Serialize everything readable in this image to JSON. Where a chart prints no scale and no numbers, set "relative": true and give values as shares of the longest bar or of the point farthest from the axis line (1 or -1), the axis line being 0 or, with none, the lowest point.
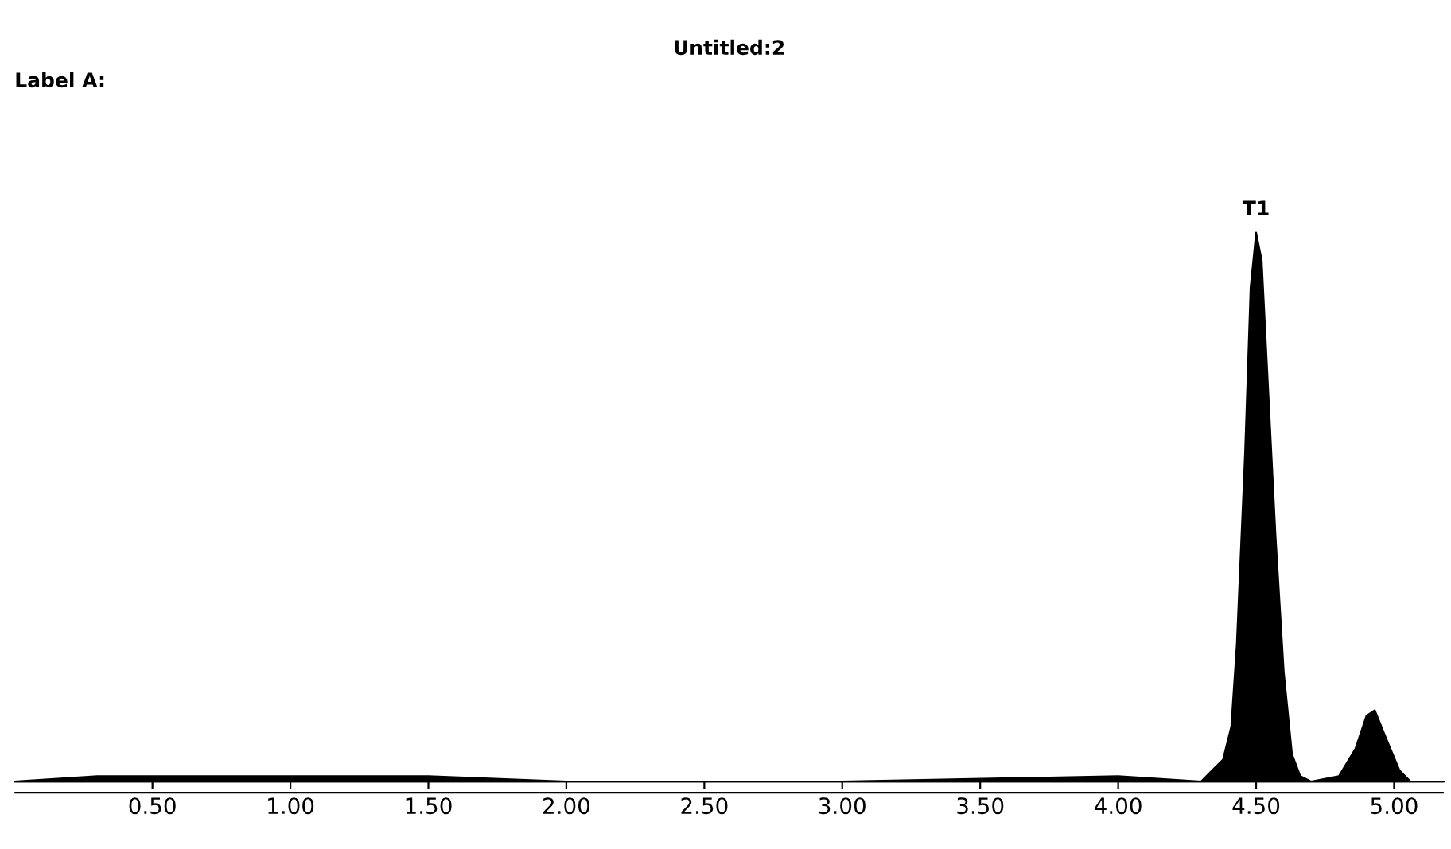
{
  "chart_data": {
    "type": "area",
    "title": "Untitled:2",
    "relative": true,
    "annotations": [
      "Label A:",
      {
        "text": "T1",
        "x": 4.5,
        "y": 1.0
      }
    ],
    "x": [
      0.0,
      0.3,
      0.6,
      1.0,
      1.5,
      2.0,
      3.0,
      4.0,
      4.3,
      4.34,
      4.38,
      4.41,
      4.43,
      4.46,
      4.48,
      4.5,
      4.52,
      4.54,
      4.57,
      4.6,
      4.63,
      4.66,
      4.7,
      4.8,
      4.86,
      4.9,
      4.93,
      4.97,
      5.02,
      5.06,
      5.18
    ],
    "series": [
      {
        "color": "#000000",
        "values": [
          0,
          0.01,
          0.01,
          0.01,
          0.01,
          0,
          0,
          0.01,
          0,
          0.02,
          0.04,
          0.1,
          0.25,
          0.6,
          0.9,
          1.0,
          0.95,
          0.75,
          0.45,
          0.2,
          0.05,
          0.01,
          0,
          0.01,
          0.06,
          0.12,
          0.13,
          0.08,
          0.02,
          0,
          0
        ]
      }
    ],
    "xlim": [
      0.0,
      5.18
    ],
    "xticks": [
      {
        "value": 0.5,
        "label": "0.50"
      },
      {
        "value": 1.0,
        "label": "1.00"
      },
      {
        "value": 1.5,
        "label": "1.50"
      },
      {
        "value": 2.0,
        "label": "2.00"
      },
      {
        "value": 2.5,
        "label": "2.50"
      },
      {
        "value": 3.0,
        "label": "3.00"
      },
      {
        "value": 3.5,
        "label": "3.50"
      },
      {
        "value": 4.0,
        "label": "4.00"
      },
      {
        "value": 4.5,
        "label": "4.50"
      },
      {
        "value": 5.0,
        "label": "5.00"
      }
    ],
    "grid": false,
    "legend": false
  }
}
